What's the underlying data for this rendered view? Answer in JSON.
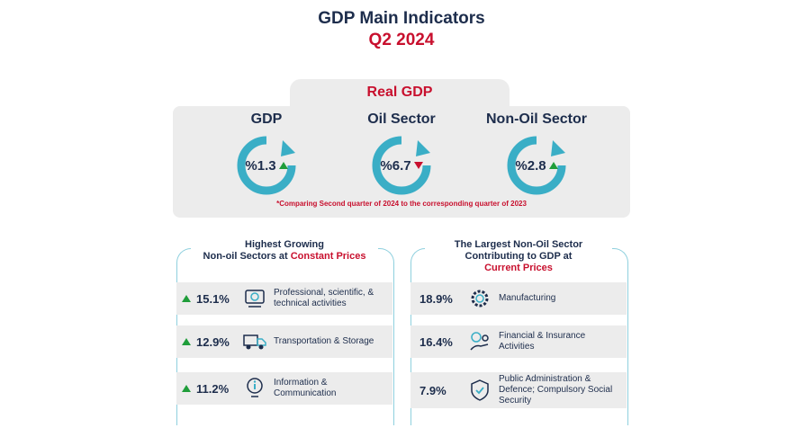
{
  "header": {
    "title": "GDP Main Indicators",
    "subtitle": "Q2 2024"
  },
  "real_gdp": {
    "label": "Real GDP",
    "indicators": [
      {
        "name": "GDP",
        "value": "%1.3",
        "trend": "up"
      },
      {
        "name": "Oil Sector",
        "value": "%6.7",
        "trend": "down"
      },
      {
        "name": "Non-Oil Sector",
        "value": "%2.8",
        "trend": "up"
      }
    ],
    "footnote": "*Comparing Second quarter of 2024 to the corresponding quarter of 2023"
  },
  "left_panel": {
    "title_line1": "Highest Growing",
    "title_line2_prefix": "Non-oil Sectors at ",
    "title_line2_highlight": "Constant Prices",
    "rows": [
      {
        "value": "15.1%",
        "label": "Professional, scientific, & technical activities",
        "icon": "microscope-icon"
      },
      {
        "value": "12.9%",
        "label": "Transportation & Storage",
        "icon": "truck-icon"
      },
      {
        "value": "11.2%",
        "label": "Information & Communication",
        "icon": "info-icon"
      }
    ]
  },
  "right_panel": {
    "title_line1": "The Largest Non-Oil Sector",
    "title_line2": "Contributing to GDP at",
    "title_line3_highlight": "Current Prices",
    "rows": [
      {
        "value": "18.9%",
        "label": "Manufacturing",
        "icon": "gear-icon"
      },
      {
        "value": "16.4%",
        "label": "Financial & Insurance Activities",
        "icon": "money-icon"
      },
      {
        "value": "7.9%",
        "label": "Public Administration & Defence; Compulsory Social Security",
        "icon": "shield-icon"
      }
    ]
  },
  "colors": {
    "accent_red": "#c8102e",
    "ring_blue": "#3aaec6",
    "up_green": "#1f9d3a",
    "navy": "#1d2d4c"
  }
}
